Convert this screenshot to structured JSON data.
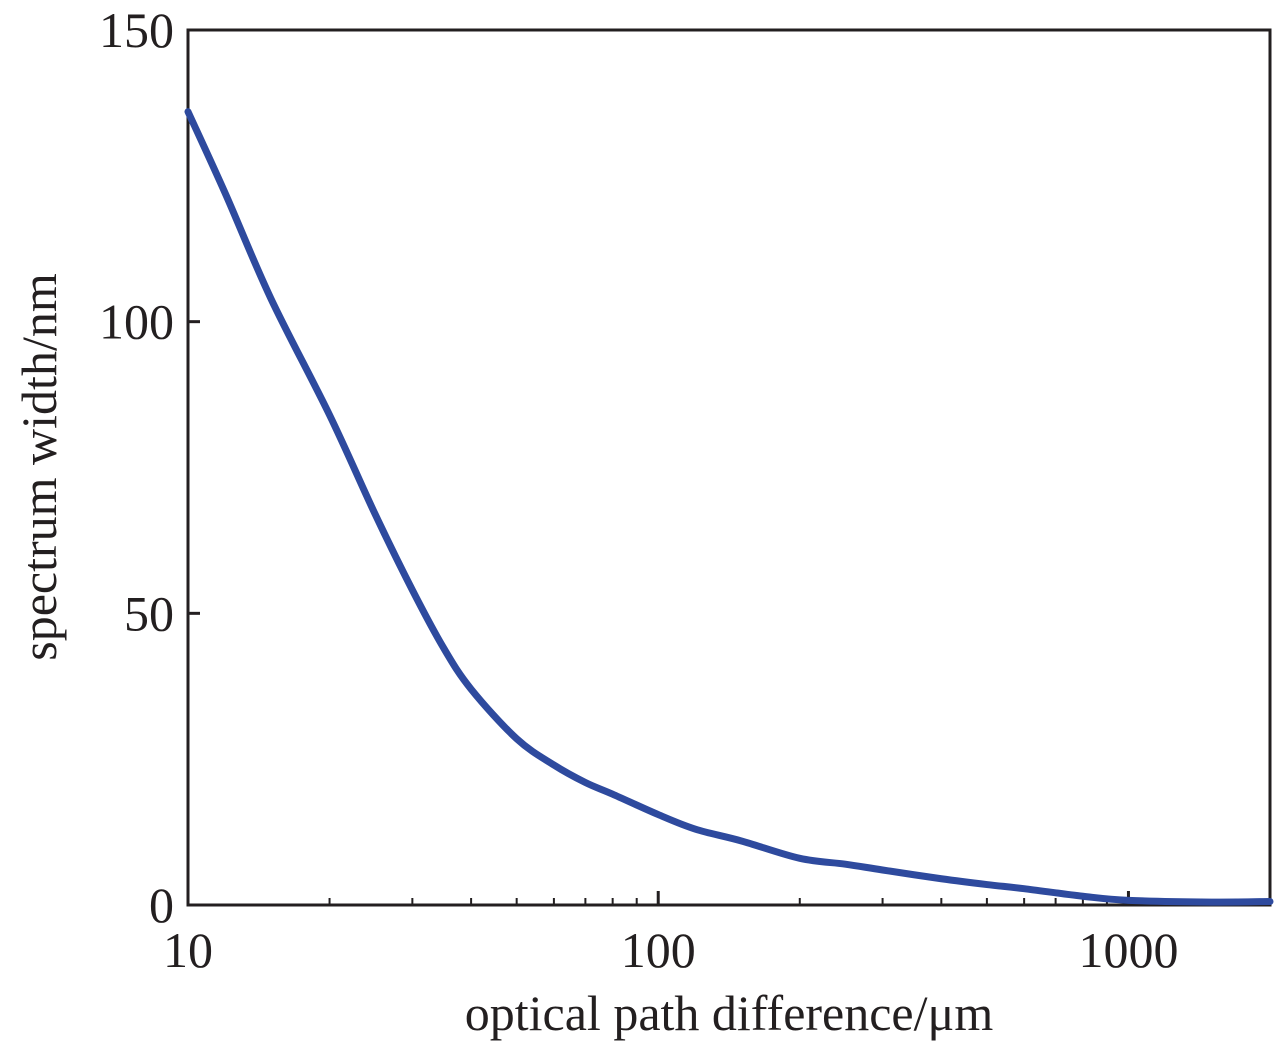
{
  "chart_data": {
    "type": "line",
    "title": "",
    "xlabel": "optical path difference/μm",
    "ylabel": "spectrum width/nm",
    "xscale": "log",
    "xlim": [
      10,
      2000
    ],
    "ylim": [
      0,
      150
    ],
    "xticks": [
      10,
      100,
      1000
    ],
    "xtick_labels": [
      "10",
      "100",
      "1000"
    ],
    "yticks": [
      0,
      50,
      100,
      150
    ],
    "ytick_labels": [
      "0",
      "50",
      "100",
      "150"
    ],
    "grid": false,
    "legend": "none",
    "series": [
      {
        "color": "#2e4a9e",
        "x": [
          10,
          12,
          15,
          20,
          25,
          30,
          35,
          40,
          50,
          60,
          70,
          80,
          100,
          120,
          150,
          200,
          250,
          300,
          400,
          500,
          600,
          800,
          1000,
          1500,
          2000
        ],
        "y": [
          136,
          122,
          104,
          84,
          67,
          54,
          44,
          37,
          28.5,
          24,
          21,
          19,
          15.5,
          13,
          11,
          8,
          7,
          6,
          4.5,
          3.5,
          2.8,
          1.5,
          0.8,
          0.5,
          0.6
        ]
      }
    ]
  }
}
